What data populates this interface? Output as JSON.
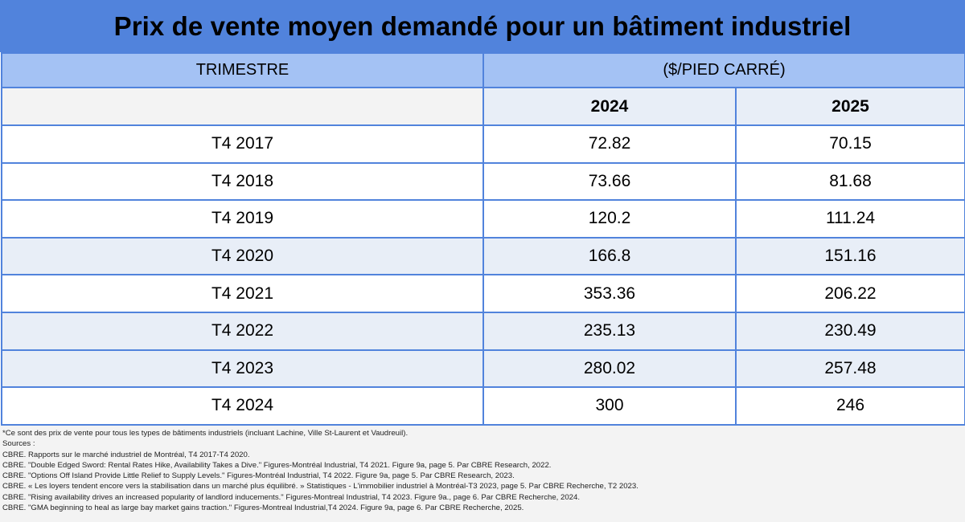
{
  "title": "Prix de vente moyen demandé pour un bâtiment industriel",
  "header": {
    "col_quarter": "TRIMESTRE",
    "col_price": "($/PIED CARRÉ)"
  },
  "years": [
    "2024",
    "2025"
  ],
  "rows": [
    {
      "quarter": "T4 2017",
      "v2024": "72.82",
      "v2025": "70.15"
    },
    {
      "quarter": "T4 2018",
      "v2024": "73.66",
      "v2025": "81.68"
    },
    {
      "quarter": "T4 2019",
      "v2024": "120.2",
      "v2025": "111.24"
    },
    {
      "quarter": "T4 2020",
      "v2024": "166.8",
      "v2025": "151.16"
    },
    {
      "quarter": "T4 2021",
      "v2024": "353.36",
      "v2025": "206.22"
    },
    {
      "quarter": "T4 2022",
      "v2024": "235.13",
      "v2025": "230.49"
    },
    {
      "quarter": "T4 2023",
      "v2024": "280.02",
      "v2025": "257.48"
    },
    {
      "quarter": "T4 2024",
      "v2024": "300",
      "v2025": "246"
    }
  ],
  "notes": [
    "*Ce sont des prix de vente pour tous les types de bâtiments industriels (incluant Lachine, Ville St-Laurent et Vaudreuil).",
    "Sources :",
    "CBRE. Rapports sur le marché industriel de Montréal, T4 2017-T4 2020.",
    "CBRE. \"Double Edged Sword: Rental Rates Hike, Availability Takes a Dive.\" Figures-Montréal Industrial, T4 2021. Figure 9a, page 5. Par CBRE Research, 2022.",
    "CBRE. \"Options Off Island Provide Little Relief to Supply Levels.\" Figures-Montréal Industrial, T4 2022. Figure 9a, page 5. Par CBRE Research, 2023.",
    "CBRE. « Les loyers tendent encore vers la stabilisation dans un marché plus équilibré. » Statistiques - L'immobilier industriel à Montréal-T3 2023, page 5. Par CBRE Recherche, T2 2023.",
    "CBRE. \"Rising availability drives an increased popularity of landlord inducements.\" Figures-Montreal Industrial, T4 2023. Figure 9a., page 6. Par CBRE Recherche, 2024.",
    "CBRE. \"GMA beginning to heal as large bay market gains traction.\" Figures-Montreal Industrial,T4 2024. Figure 9a, page 6. Par CBRE Recherche, 2025."
  ]
}
